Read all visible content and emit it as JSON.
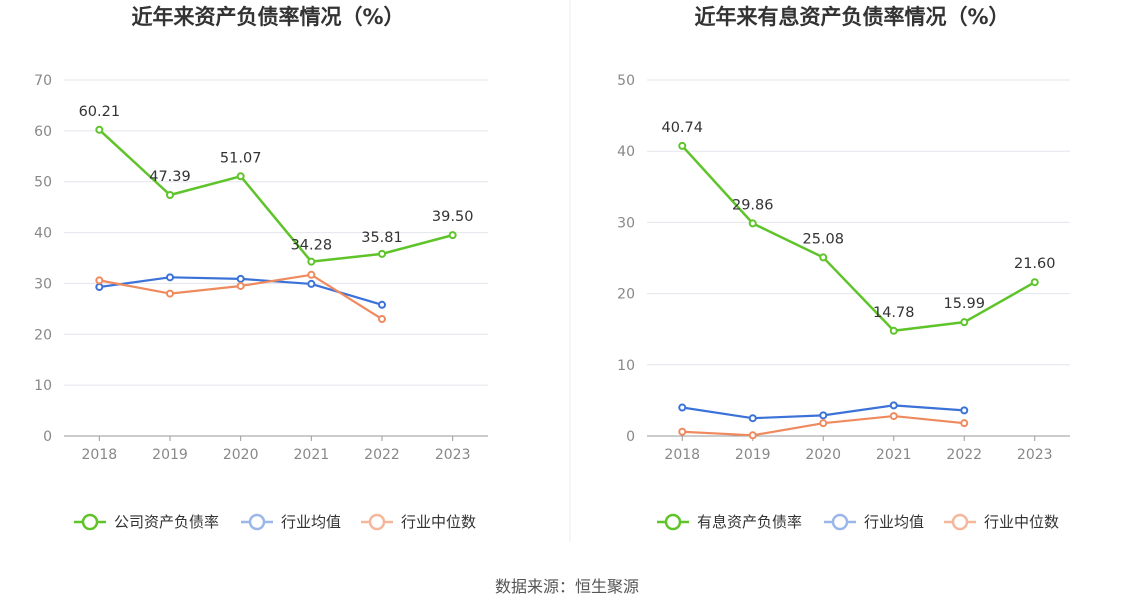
{
  "source": "数据来源：恒生聚源",
  "colors": {
    "company": "#5ec42a",
    "avg": "#3b72d8",
    "median": "#ef8a5f",
    "grid": "#e3e6ee",
    "axis": "#9a9a9a"
  },
  "chart_data": [
    {
      "type": "line",
      "title": "近年来资产负债率情况（%）",
      "categories": [
        "2018",
        "2019",
        "2020",
        "2021",
        "2022",
        "2023"
      ],
      "ylim": [
        0,
        70
      ],
      "yticks": [
        0,
        10,
        20,
        30,
        40,
        50,
        60,
        70
      ],
      "grid": true,
      "legend_position": "bottom",
      "series": [
        {
          "name": "公司资产负债率",
          "key": "company",
          "values": [
            60.21,
            47.39,
            51.07,
            34.28,
            35.81,
            39.5
          ],
          "labels": [
            "60.21",
            "47.39",
            "51.07",
            "34.28",
            "35.81",
            "39.50"
          ]
        },
        {
          "name": "行业均值",
          "key": "avg",
          "values": [
            29.3,
            31.2,
            30.9,
            29.9,
            25.8,
            null
          ]
        },
        {
          "name": "行业中位数",
          "key": "median",
          "values": [
            30.6,
            28.0,
            29.5,
            31.7,
            23.0,
            null
          ]
        }
      ]
    },
    {
      "type": "line",
      "title": "近年来有息资产负债率情况（%）",
      "categories": [
        "2018",
        "2019",
        "2020",
        "2021",
        "2022",
        "2023"
      ],
      "ylim": [
        0,
        50
      ],
      "yticks": [
        0,
        10,
        20,
        30,
        40,
        50
      ],
      "grid": true,
      "legend_position": "bottom",
      "series": [
        {
          "name": "有息资产负债率",
          "key": "company",
          "values": [
            40.74,
            29.86,
            25.08,
            14.78,
            15.99,
            21.6
          ],
          "labels": [
            "40.74",
            "29.86",
            "25.08",
            "14.78",
            "15.99",
            "21.60"
          ]
        },
        {
          "name": "行业均值",
          "key": "avg",
          "values": [
            4.0,
            2.5,
            2.9,
            4.3,
            3.6,
            null
          ]
        },
        {
          "name": "行业中位数",
          "key": "median",
          "values": [
            0.6,
            0.1,
            1.8,
            2.8,
            1.8,
            null
          ]
        }
      ]
    }
  ]
}
